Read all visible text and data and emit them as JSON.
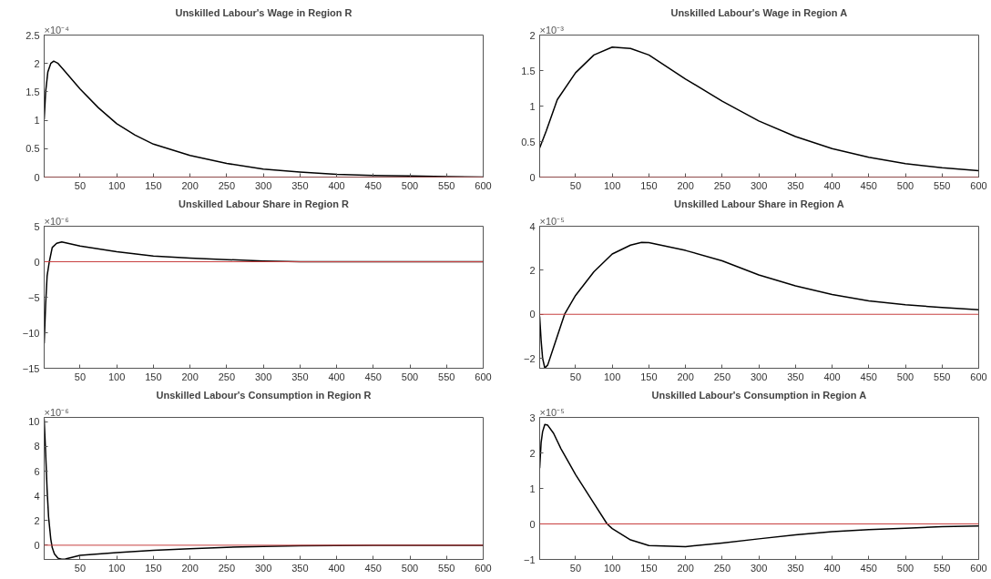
{
  "chart_data": [
    {
      "type": "line",
      "title": "Unskilled Labour's Wage in Region R",
      "annotations": [
        "×10⁻⁴"
      ],
      "x": [
        1,
        3,
        6,
        10,
        14,
        20,
        30,
        50,
        75,
        100,
        125,
        150,
        200,
        250,
        300,
        350,
        400,
        450,
        500,
        550,
        600
      ],
      "series": [
        {
          "color": "#000000",
          "values": [
            1.02,
            1.5,
            1.85,
            2.0,
            2.04,
            2.0,
            1.85,
            1.55,
            1.22,
            0.94,
            0.74,
            0.58,
            0.38,
            0.24,
            0.14,
            0.09,
            0.05,
            0.03,
            0.02,
            0.01,
            0.0
          ]
        }
      ],
      "xlim": [
        1,
        600
      ],
      "ylim": [
        0,
        2.5
      ],
      "xticks": [
        50,
        100,
        150,
        200,
        250,
        300,
        350,
        400,
        450,
        500,
        550,
        600
      ],
      "yticks": [
        0,
        0.5,
        1,
        1.5,
        2,
        2.5
      ],
      "ref_lines": [
        {
          "axis": "y",
          "value": 0,
          "color": "#c84040"
        }
      ],
      "grid": false
    },
    {
      "type": "line",
      "title": "Unskilled Labour's Wage in Region A",
      "annotations": [
        "×10⁻³"
      ],
      "x": [
        1,
        10,
        25,
        50,
        75,
        100,
        125,
        150,
        200,
        250,
        300,
        350,
        400,
        450,
        500,
        550,
        600
      ],
      "series": [
        {
          "color": "#000000",
          "values": [
            0.41,
            0.65,
            1.09,
            1.47,
            1.72,
            1.83,
            1.81,
            1.72,
            1.38,
            1.07,
            0.79,
            0.57,
            0.4,
            0.28,
            0.19,
            0.13,
            0.09
          ]
        }
      ],
      "xlim": [
        1,
        600
      ],
      "ylim": [
        0,
        2
      ],
      "xticks": [
        50,
        100,
        150,
        200,
        250,
        300,
        350,
        400,
        450,
        500,
        550,
        600
      ],
      "yticks": [
        0,
        0.5,
        1,
        1.5,
        2
      ],
      "ref_lines": [
        {
          "axis": "y",
          "value": 0,
          "color": "#c84040"
        }
      ],
      "grid": false
    },
    {
      "type": "line",
      "title": "Unskilled Labour Share in Region R",
      "annotations": [
        "×10⁻⁶"
      ],
      "x": [
        1,
        3,
        5,
        8,
        12,
        18,
        25,
        50,
        100,
        150,
        200,
        250,
        300,
        350,
        400,
        450,
        500,
        550,
        600
      ],
      "series": [
        {
          "color": "#000000",
          "values": [
            -11.5,
            -6,
            -2,
            0,
            2,
            2.6,
            2.8,
            2.2,
            1.4,
            0.8,
            0.5,
            0.3,
            0.1,
            0,
            0,
            0,
            0,
            0,
            0
          ]
        }
      ],
      "xlim": [
        1,
        600
      ],
      "ylim": [
        -15,
        5
      ],
      "xticks": [
        50,
        100,
        150,
        200,
        250,
        300,
        350,
        400,
        450,
        500,
        550,
        600
      ],
      "yticks": [
        -15,
        -10,
        -5,
        0,
        5
      ],
      "ref_lines": [
        {
          "axis": "y",
          "value": 0,
          "color": "#c84040"
        }
      ],
      "grid": false
    },
    {
      "type": "line",
      "title": "Unskilled Labour Share in Region A",
      "annotations": [
        "×10⁻⁵"
      ],
      "x": [
        1,
        3,
        5,
        8,
        12,
        20,
        30,
        35,
        50,
        75,
        100,
        125,
        140,
        150,
        200,
        250,
        300,
        350,
        400,
        450,
        500,
        550,
        600
      ],
      "series": [
        {
          "color": "#000000",
          "values": [
            -0.1,
            -1.2,
            -2.0,
            -2.44,
            -2.3,
            -1.5,
            -0.5,
            0,
            0.86,
            1.93,
            2.74,
            3.14,
            3.27,
            3.26,
            2.9,
            2.43,
            1.79,
            1.29,
            0.9,
            0.61,
            0.43,
            0.31,
            0.21
          ]
        }
      ],
      "xlim": [
        1,
        600
      ],
      "ylim": [
        -2.45,
        4
      ],
      "xticks": [
        50,
        100,
        150,
        200,
        250,
        300,
        350,
        400,
        450,
        500,
        550,
        600
      ],
      "yticks": [
        -2,
        0,
        2,
        4
      ],
      "ref_lines": [
        {
          "axis": "y",
          "value": 0,
          "color": "#c84040"
        }
      ],
      "grid": false
    },
    {
      "type": "line",
      "title": "Unskilled Labour's Consumption in Region R",
      "annotations": [
        "×10⁻⁶"
      ],
      "x": [
        1,
        3,
        5,
        7,
        10,
        12,
        15,
        20,
        25,
        30,
        50,
        100,
        150,
        200,
        250,
        300,
        350,
        400,
        450,
        500,
        550,
        600
      ],
      "series": [
        {
          "color": "#000000",
          "values": [
            10.2,
            7.5,
            4.5,
            2.3,
            0.5,
            -0.2,
            -0.7,
            -1.05,
            -1.13,
            -1.12,
            -0.82,
            -0.6,
            -0.42,
            -0.28,
            -0.17,
            -0.1,
            -0.05,
            -0.02,
            -0.01,
            0,
            0,
            0
          ]
        }
      ],
      "xlim": [
        1,
        600
      ],
      "ylim": [
        -1.15,
        10.35
      ],
      "xticks": [
        50,
        100,
        150,
        200,
        250,
        300,
        350,
        400,
        450,
        500,
        550,
        600
      ],
      "yticks": [
        0,
        2,
        4,
        6,
        8,
        10
      ],
      "ref_lines": [
        {
          "axis": "y",
          "value": 0,
          "color": "#c84040"
        }
      ],
      "grid": false
    },
    {
      "type": "line",
      "title": "Unskilled Labour's Consumption in Region A",
      "annotations": [
        "×10⁻⁵"
      ],
      "x": [
        1,
        3,
        5,
        8,
        12,
        20,
        30,
        50,
        75,
        93,
        100,
        125,
        150,
        200,
        250,
        300,
        350,
        400,
        450,
        500,
        550,
        600
      ],
      "series": [
        {
          "color": "#000000",
          "values": [
            1.57,
            2.3,
            2.6,
            2.8,
            2.78,
            2.55,
            2.12,
            1.39,
            0.58,
            0,
            -0.13,
            -0.45,
            -0.61,
            -0.64,
            -0.54,
            -0.42,
            -0.31,
            -0.22,
            -0.16,
            -0.12,
            -0.08,
            -0.06
          ]
        }
      ],
      "xlim": [
        1,
        600
      ],
      "ylim": [
        -1,
        3
      ],
      "xticks": [
        50,
        100,
        150,
        200,
        250,
        300,
        350,
        400,
        450,
        500,
        550,
        600
      ],
      "yticks": [
        -1,
        0,
        1,
        2,
        3
      ],
      "ref_lines": [
        {
          "axis": "y",
          "value": 0,
          "color": "#c84040"
        }
      ],
      "grid": false
    }
  ]
}
